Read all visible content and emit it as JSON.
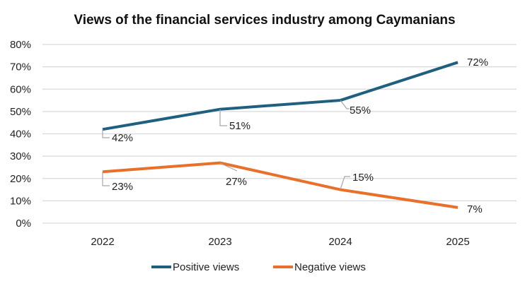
{
  "chart_data": {
    "type": "line",
    "title": "Views of the financial services industry among Caymanians",
    "xlabel": "",
    "ylabel": "",
    "categories": [
      "2022",
      "2023",
      "2024",
      "2025"
    ],
    "ylim": [
      0,
      80
    ],
    "yticks": [
      0,
      10,
      20,
      30,
      40,
      50,
      60,
      70,
      80
    ],
    "ytick_labels": [
      "0%",
      "10%",
      "20%",
      "30%",
      "40%",
      "50%",
      "60%",
      "70%",
      "80%"
    ],
    "grid": true,
    "legend_position": "bottom",
    "series": [
      {
        "name": "Positive views",
        "color": "#1f5f7f",
        "values": [
          42,
          51,
          55,
          72
        ],
        "labels": [
          "42%",
          "51%",
          "55%",
          "72%"
        ]
      },
      {
        "name": "Negative views",
        "color": "#e8702a",
        "values": [
          23,
          27,
          15,
          7
        ],
        "labels": [
          "23%",
          "27%",
          "15%",
          "7%"
        ]
      }
    ]
  }
}
